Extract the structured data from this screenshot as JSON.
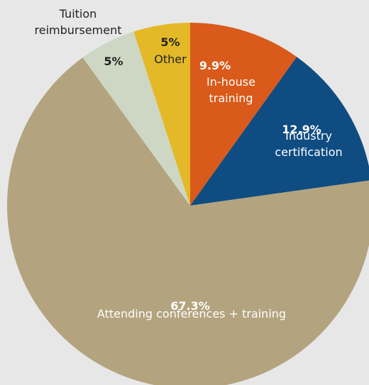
{
  "chart_data": {
    "type": "pie",
    "categories": [
      "In-house training",
      "Industry certification",
      "Attending conferences + training",
      "Tuition reimbursement",
      "Other"
    ],
    "values": [
      9.9,
      12.9,
      67.3,
      5,
      5
    ],
    "value_labels": [
      "9.9%",
      "12.9%",
      "67.3%",
      "5%",
      "5%"
    ],
    "colors": [
      "#d95a1b",
      "#0f4c81",
      "#b3a47f",
      "#ced6c4",
      "#e3b927"
    ]
  }
}
